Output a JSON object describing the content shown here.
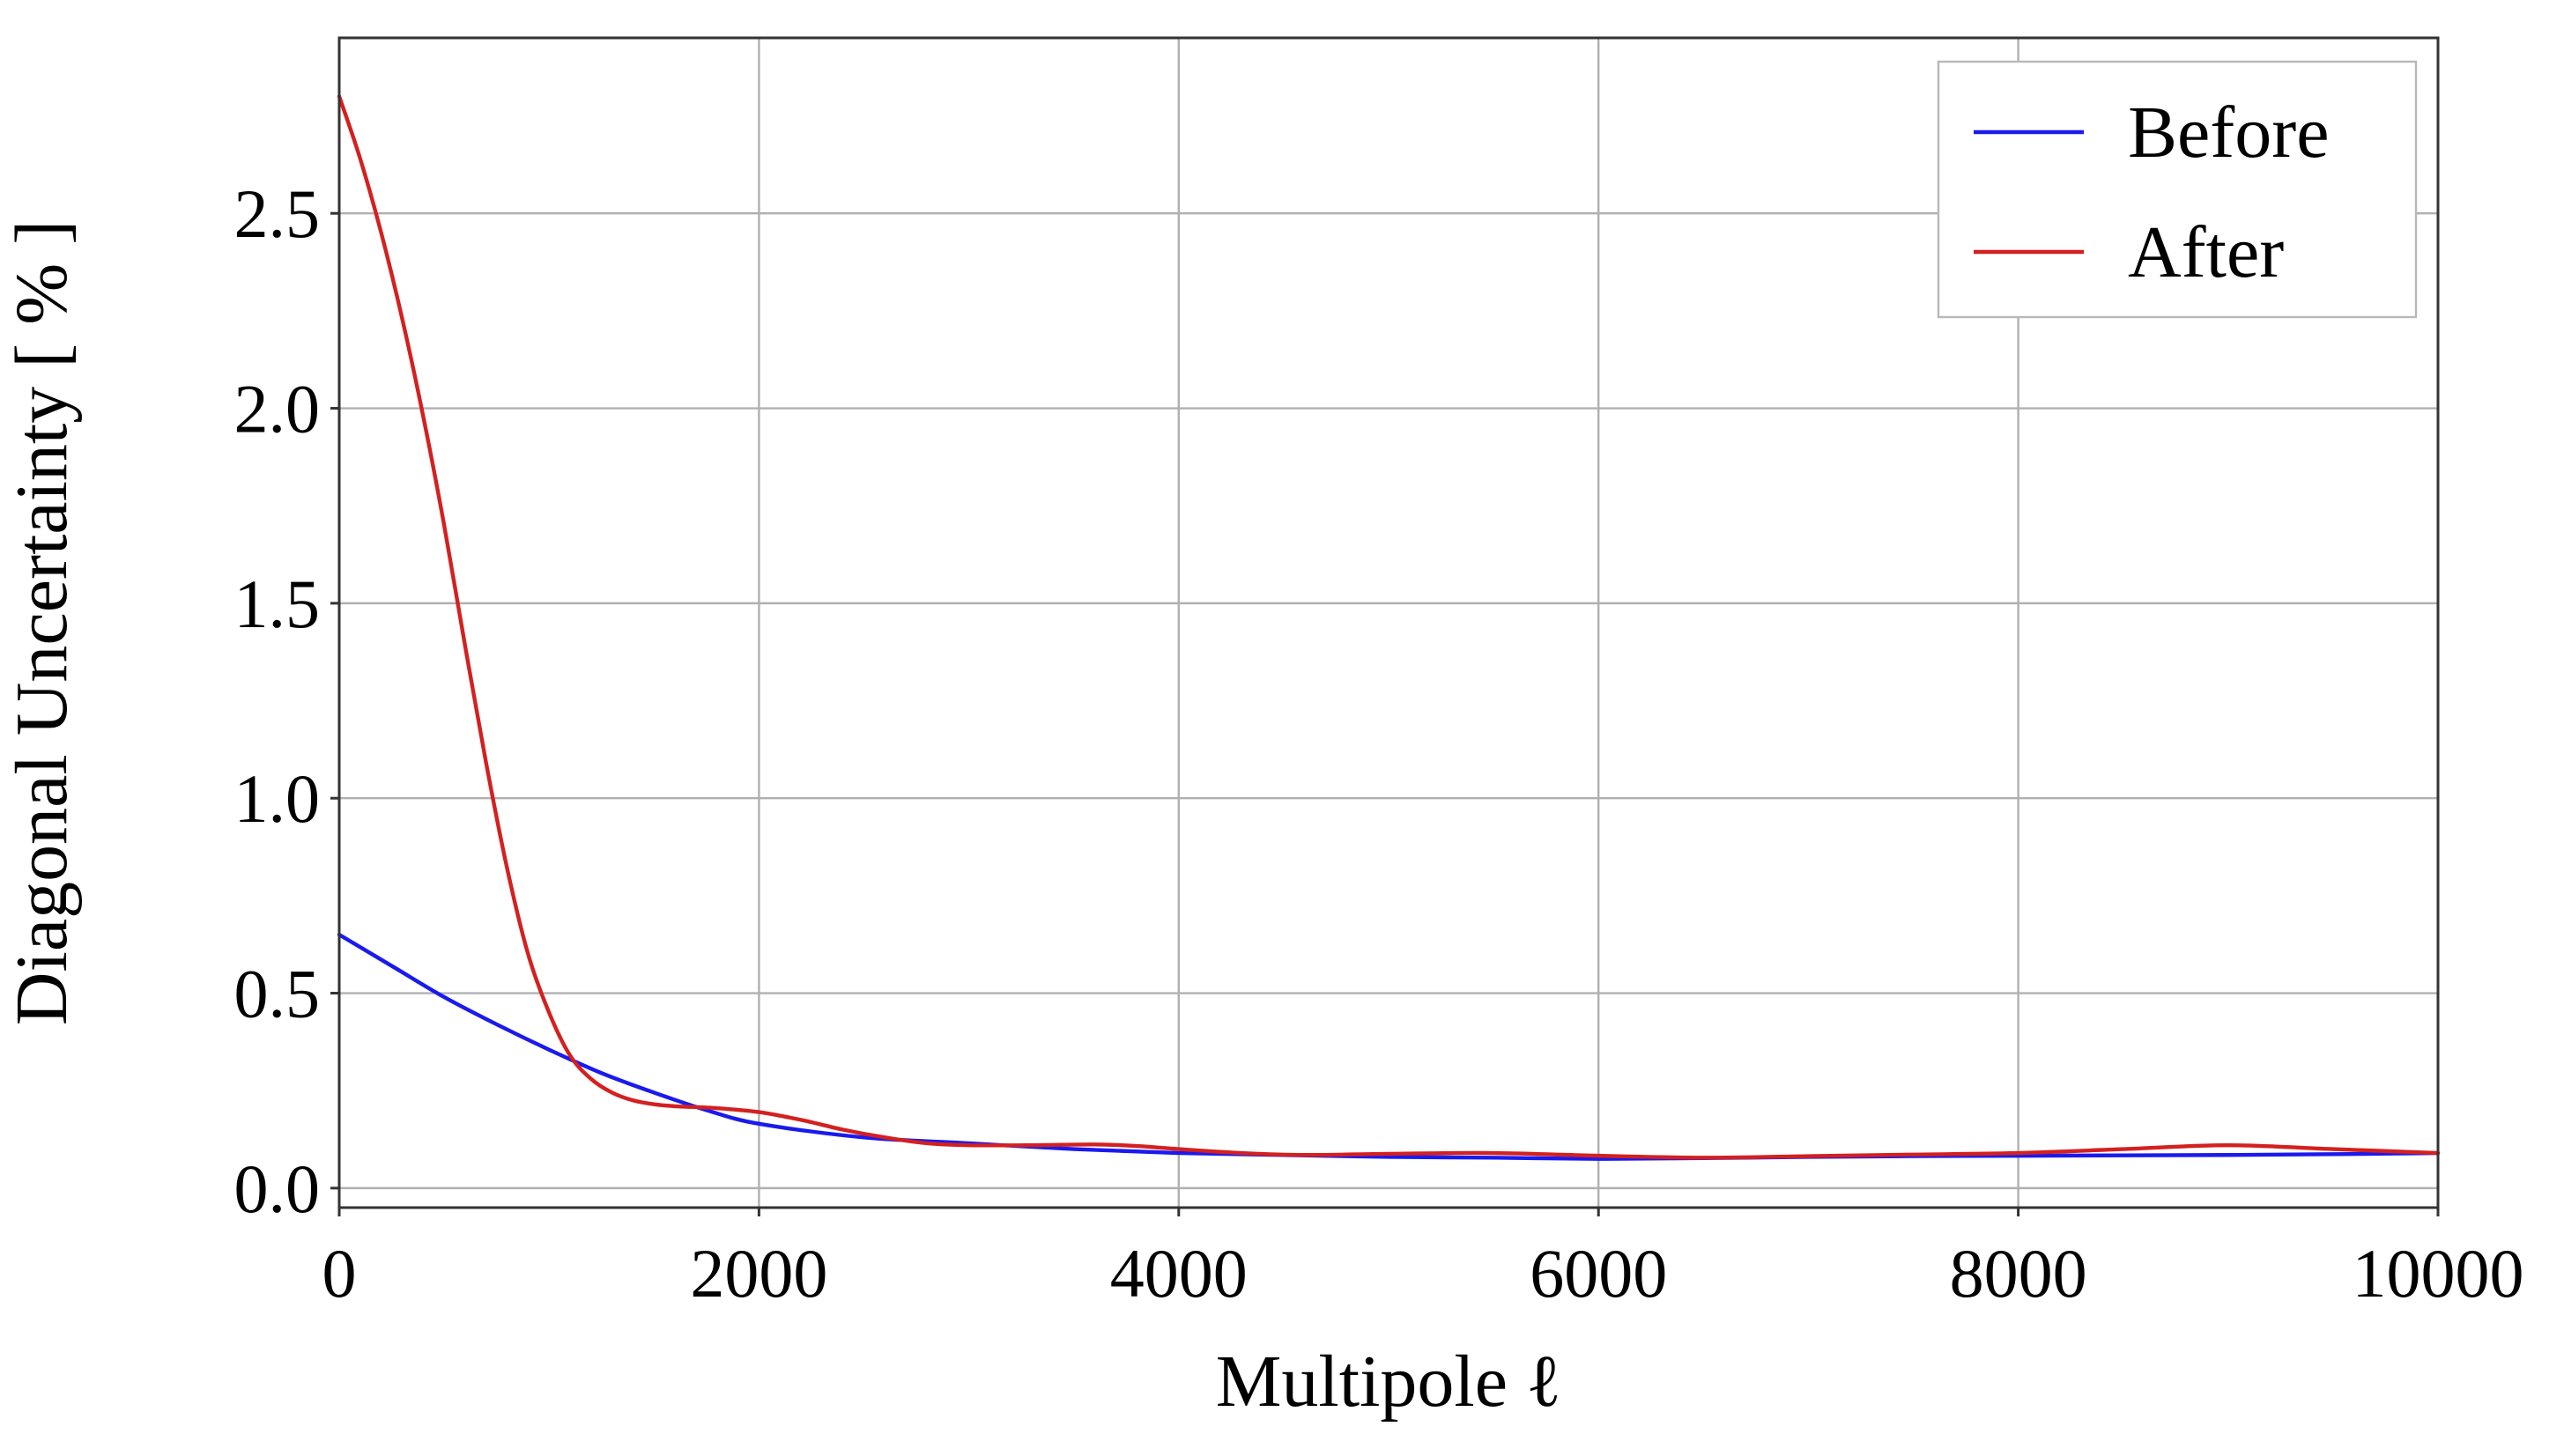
{
  "chart_data": {
    "type": "line",
    "xlabel": "Multipole ℓ",
    "ylabel": "Diagonal Uncertainty [ % ]",
    "xlim": [
      0,
      10000
    ],
    "ylim": [
      -0.05,
      2.95
    ],
    "xticks": [
      0,
      2000,
      4000,
      6000,
      8000,
      10000
    ],
    "xtick_labels": [
      "0",
      "2000",
      "4000",
      "6000",
      "8000",
      "10000"
    ],
    "yticks": [
      0.0,
      0.5,
      1.0,
      1.5,
      2.0,
      2.5
    ],
    "ytick_labels": [
      "0.0",
      "0.5",
      "1.0",
      "1.5",
      "2.0",
      "2.5"
    ],
    "grid": true,
    "legend_position": "top-right",
    "series": [
      {
        "name": "Before",
        "color": "#1a1aee",
        "x": [
          0,
          250,
          500,
          750,
          1000,
          1250,
          1500,
          1750,
          2000,
          2500,
          3000,
          3500,
          4000,
          4500,
          5000,
          5500,
          6000,
          6500,
          7000,
          7500,
          8000,
          8500,
          9000,
          9500,
          10000
        ],
        "y": [
          0.65,
          0.57,
          0.49,
          0.42,
          0.355,
          0.295,
          0.245,
          0.2,
          0.165,
          0.13,
          0.115,
          0.1,
          0.09,
          0.085,
          0.08,
          0.078,
          0.075,
          0.077,
          0.08,
          0.082,
          0.083,
          0.084,
          0.085,
          0.087,
          0.09
        ]
      },
      {
        "name": "After",
        "color": "#d42020",
        "x": [
          0,
          100,
          200,
          300,
          400,
          500,
          600,
          700,
          800,
          900,
          1000,
          1100,
          1200,
          1300,
          1400,
          1500,
          1600,
          1800,
          2000,
          2200,
          2400,
          2600,
          2800,
          3000,
          3300,
          3600,
          3800,
          4000,
          4300,
          4600,
          5000,
          5500,
          6000,
          6500,
          7000,
          7500,
          8000,
          8500,
          9000,
          9500,
          10000
        ],
        "y": [
          2.8,
          2.64,
          2.45,
          2.23,
          1.98,
          1.7,
          1.39,
          1.09,
          0.82,
          0.6,
          0.45,
          0.34,
          0.28,
          0.245,
          0.225,
          0.215,
          0.21,
          0.205,
          0.195,
          0.175,
          0.15,
          0.13,
          0.115,
          0.11,
          0.11,
          0.112,
          0.108,
          0.1,
          0.09,
          0.085,
          0.088,
          0.09,
          0.083,
          0.078,
          0.082,
          0.086,
          0.09,
          0.1,
          0.11,
          0.1,
          0.09
        ]
      }
    ]
  }
}
